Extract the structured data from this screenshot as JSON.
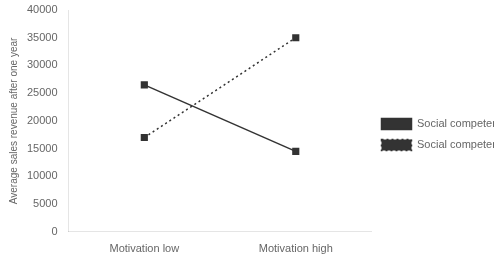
{
  "chart_data": {
    "type": "line",
    "categories": [
      "Motivation low",
      "Motivation high"
    ],
    "series": [
      {
        "name": "Social competence low",
        "color": "#333333",
        "values": [
          26500,
          14500
        ],
        "marker": "square",
        "line_style": "solid"
      },
      {
        "name": "Social competence high**",
        "color": "#333333",
        "values": [
          17000,
          35000
        ],
        "marker": "square",
        "line_style": "dotted"
      }
    ],
    "ylabel": "Average sales revenue after one year",
    "ylim": [
      0,
      40000
    ],
    "yticks": [
      0,
      5000,
      10000,
      15000,
      20000,
      25000,
      30000,
      35000,
      40000
    ],
    "grid": false,
    "legend": "right"
  }
}
